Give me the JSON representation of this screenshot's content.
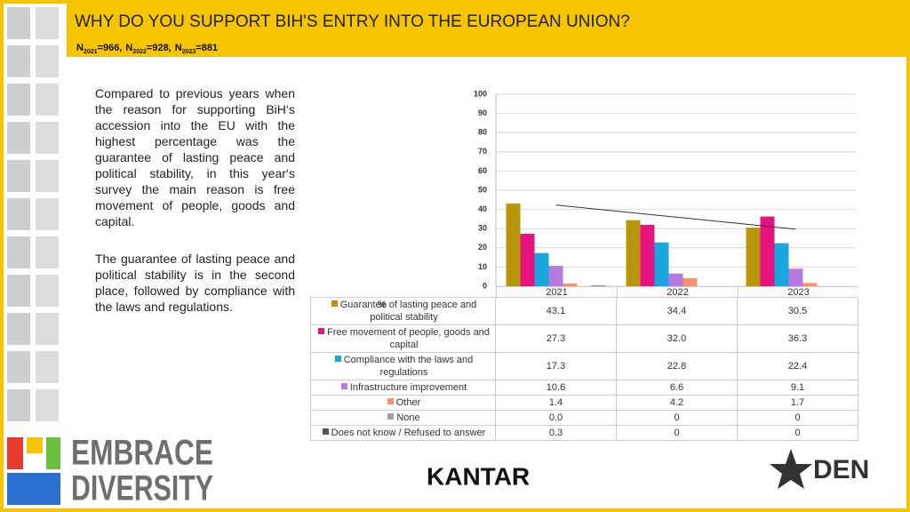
{
  "header": {
    "title": "WHY DO YOU SUPPORT BIH'S ENTRY INTO THE EUROPEAN UNION?",
    "sample_sizes": [
      {
        "label": "N",
        "sub": "2021",
        "text": "=966,"
      },
      {
        "label": "N",
        "sub": "2022",
        "text": "=928,"
      },
      {
        "label": "N",
        "sub": "2023",
        "text": "=881"
      }
    ]
  },
  "text": [
    "Compared to previous years when the reason for supporting BiH‘s accession into the EU with the highest percentage was the guarantee of lasting peace and political stability, in this year‘s survey the main reason is  free movement of people, goods and capital.",
    "The guarantee of lasting peace and political stability is in the second place, followed by compliance with the laws and regulations."
  ],
  "chart_data": {
    "type": "bar",
    "unit": "%",
    "categories": [
      "2021",
      "2022",
      "2023"
    ],
    "ylim": [
      0,
      100
    ],
    "yticks": [
      0,
      10,
      20,
      30,
      40,
      50,
      60,
      70,
      80,
      90,
      100
    ],
    "grid": true,
    "trendline": true,
    "series": [
      {
        "name": "Guarantee of lasting peace and political stability",
        "color": "#b8960c",
        "values": [
          43.1,
          34.4,
          30.5
        ],
        "value_labels": [
          "43.1",
          "34.4",
          "30.5"
        ]
      },
      {
        "name": "Free movement of people, goods and capital",
        "color": "#e6137f",
        "values": [
          27.3,
          32.0,
          36.3
        ],
        "value_labels": [
          "27.3",
          "32.0",
          "36.3"
        ]
      },
      {
        "name": "Compliance with the laws and regulations",
        "color": "#1aa7e0",
        "values": [
          17.3,
          22.8,
          22.4
        ],
        "value_labels": [
          "17.3",
          "22.8",
          "22.4"
        ]
      },
      {
        "name": "Infrastructure improvement",
        "color": "#b57be0",
        "values": [
          10.6,
          6.6,
          9.1
        ],
        "value_labels": [
          "10.6",
          "6.6",
          "9.1"
        ]
      },
      {
        "name": "Other",
        "color": "#f4926e",
        "values": [
          1.4,
          4.2,
          1.7
        ],
        "value_labels": [
          "1.4",
          "4.2",
          "1.7"
        ]
      },
      {
        "name": "None",
        "color": "#a0a0a0",
        "values": [
          0.0,
          0,
          0
        ],
        "value_labels": [
          "0.0",
          "0",
          "0"
        ]
      },
      {
        "name": "Does not know / Refused to answer",
        "color": "#555555",
        "values": [
          0.3,
          0,
          0
        ],
        "value_labels": [
          "0.3",
          "0",
          "0"
        ]
      }
    ]
  },
  "logos": {
    "embrace": [
      "EMBRACE",
      "DIVERSITY"
    ],
    "kantar": "KANTAR",
    "den": "DEN"
  }
}
